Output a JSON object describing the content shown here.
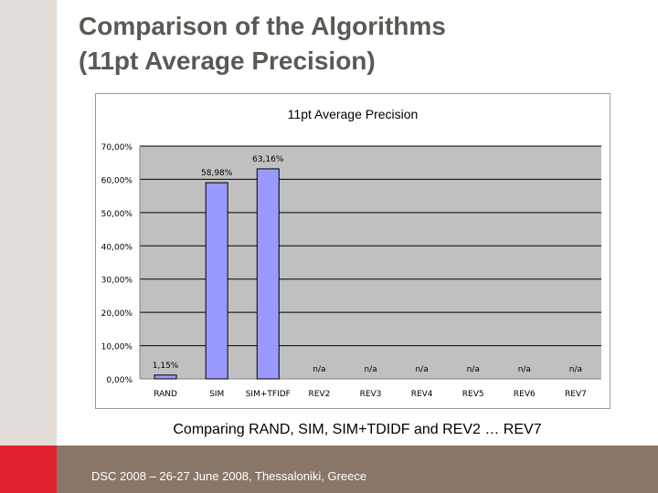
{
  "slide": {
    "title_line1": "Comparison of the Algorithms",
    "title_line2": "(11pt Average Precision)",
    "caption": "Comparing RAND, SIM, SIM+TDIDF and REV2 … REV7",
    "footer": "DSC 2008 – 26-27 June 2008, Thessaloniki, Greece"
  },
  "colors": {
    "bar_fill": "#9999ff",
    "plot_bg": "#c0c0c0",
    "footer_bar": "#8a7667",
    "accent": "#e0202e"
  },
  "chart_data": {
    "type": "bar",
    "title": "11pt Average Precision",
    "categories": [
      "RAND",
      "SIM",
      "SIM+TFIDF",
      "REV2",
      "REV3",
      "REV4",
      "REV5",
      "REV6",
      "REV7"
    ],
    "values": [
      1.15,
      58.98,
      63.16,
      null,
      null,
      null,
      null,
      null,
      null
    ],
    "data_labels": [
      "1,15%",
      "58,98%",
      "63,16%",
      "n/a",
      "n/a",
      "n/a",
      "n/a",
      "n/a",
      "n/a"
    ],
    "y_ticks": [
      0,
      10,
      20,
      30,
      40,
      50,
      60,
      70
    ],
    "y_tick_labels": [
      "0,00%",
      "10,00%",
      "20,00%",
      "30,00%",
      "40,00%",
      "50,00%",
      "60,00%",
      "70,00%"
    ],
    "ylim": [
      0,
      70
    ],
    "grid": true,
    "legend": "none"
  }
}
